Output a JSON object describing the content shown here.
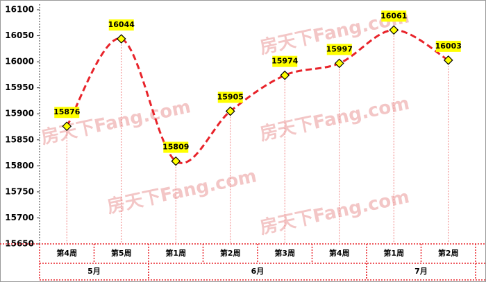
{
  "chart_data": {
    "type": "line",
    "categories": [
      "第4周",
      "第5周",
      "第1周",
      "第2周",
      "第3周",
      "第4周",
      "第1周",
      "第2周"
    ],
    "groups": [
      {
        "name": "5月",
        "count": 2
      },
      {
        "name": "6月",
        "count": 4
      },
      {
        "name": "7月",
        "count": 2
      }
    ],
    "values": [
      15876,
      16044,
      15809,
      15905,
      15974,
      15997,
      16061,
      16003
    ],
    "color": "#e8232a",
    "marker_color": "#ffff00",
    "label_color": "#ffff00",
    "ylim": [
      15650,
      16100
    ],
    "yticks": [
      15650,
      15700,
      15750,
      15800,
      15850,
      15900,
      15950,
      16000,
      16050,
      16100
    ],
    "smooth": true,
    "drop_lines": true,
    "watermark": "房天下Fang.com"
  }
}
